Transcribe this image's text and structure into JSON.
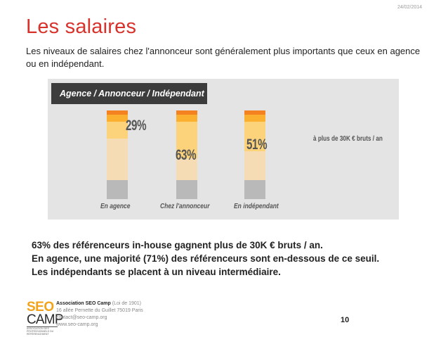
{
  "header": {
    "date": "24/02/2014"
  },
  "slide": {
    "title": "Les salaires",
    "intro": "Les niveaux de salaires chez l'annonceur sont généralement plus importants que ceux en agence ou en indépendant."
  },
  "chart_data": {
    "type": "bar",
    "title": "Agence / Annonceur / Indépendant",
    "categories": [
      "En agence",
      "Chez l'annonceur",
      "En indépendant"
    ],
    "values": [
      29,
      63,
      51
    ],
    "value_labels": [
      "29%",
      "63%",
      "51%"
    ],
    "annotation": "à plus de 30K € bruts / an",
    "colors": {
      "top": "#f58220",
      "high": "#fbb12f",
      "mid": "#fcd37b",
      "low": "#f6dcb5",
      "base": "#b9b9b9"
    }
  },
  "summary": [
    "63% des référenceurs in-house gagnent plus de 30K € bruts / an.",
    "En agence, une majorité (71%) des référenceurs sont en-dessous de ce seuil.",
    "Les indépendants se placent à un niveau intermédiaire."
  ],
  "footer": {
    "org_name": "Association SEO Camp",
    "org_suffix": " (Loi de 1901)",
    "address": "16 allée Pernette du Guillet 75019 Paris",
    "email": "contact@seo-camp.org",
    "website": "www.seo-camp.org",
    "page_number": "10"
  },
  "logo": {
    "line1": "SEO",
    "line2": "CAMP",
    "tagline": "ASSOCIATION DES PROFESSIONNELS DU RÉFÉRENCEMENT"
  }
}
